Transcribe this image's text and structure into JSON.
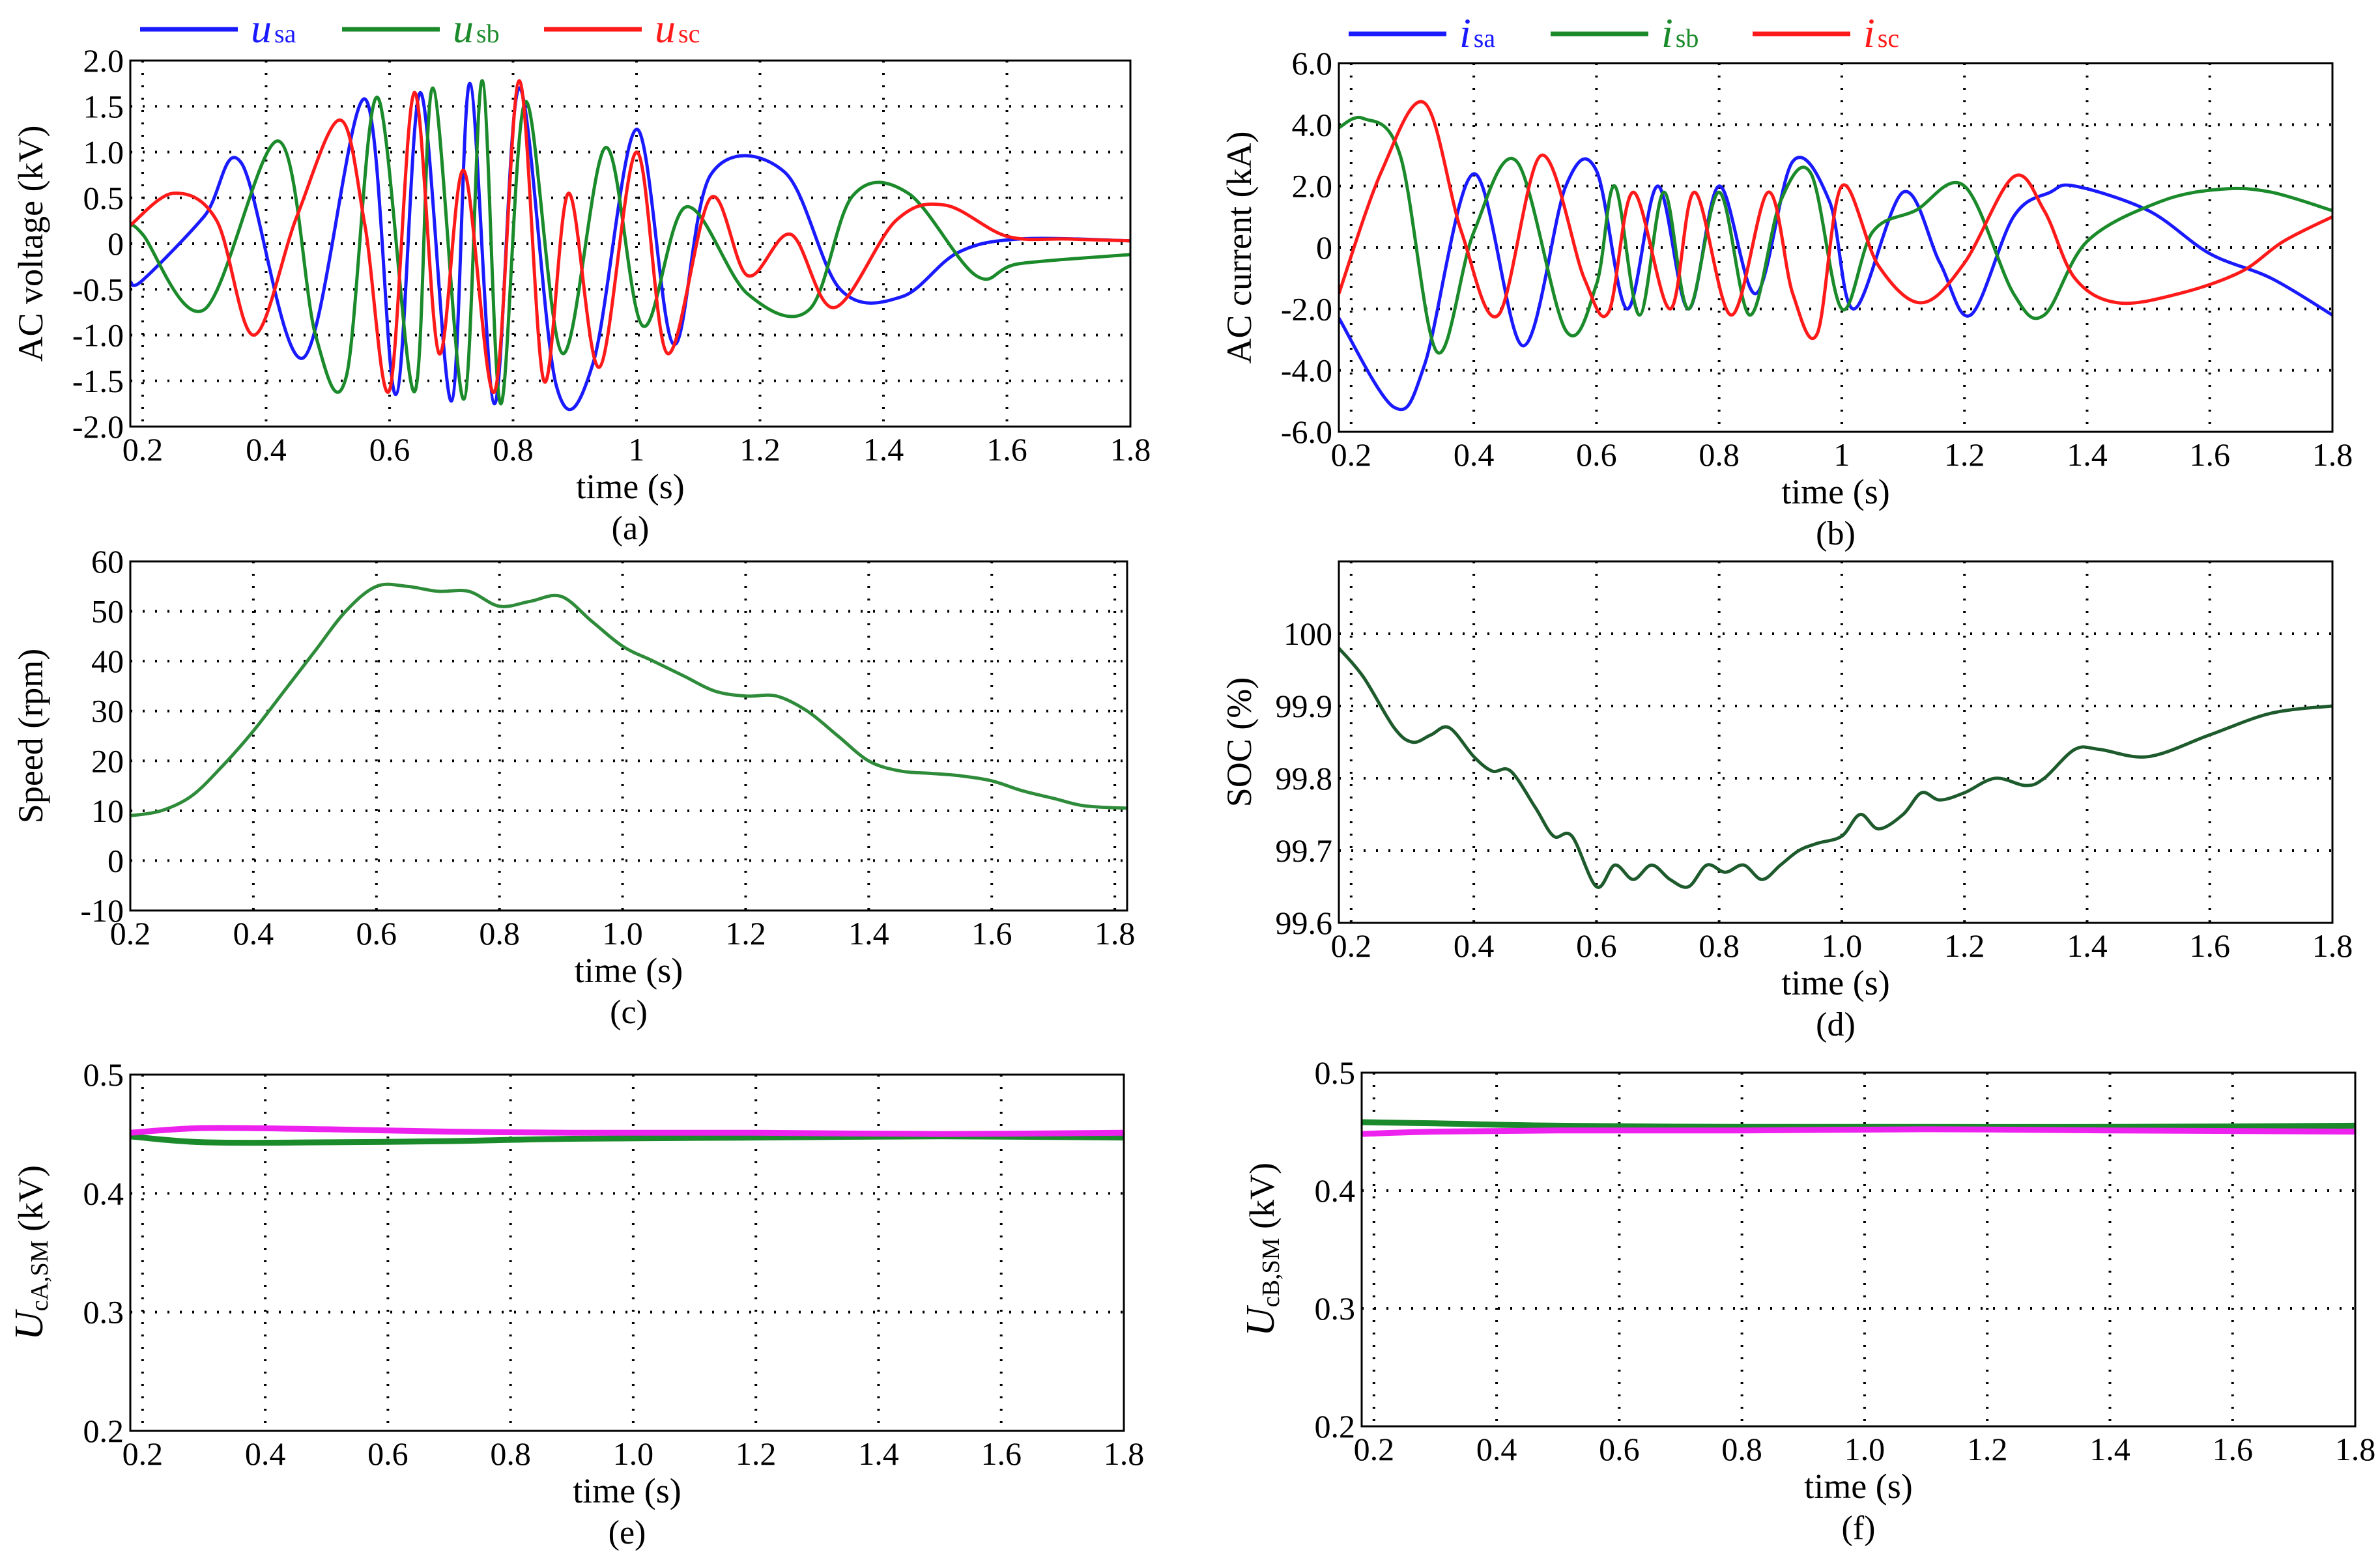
{
  "chart_data": [
    {
      "id": "a",
      "type": "line",
      "caption": "(a)",
      "xlabel": "time (s)",
      "ylabel": "AC voltage (kV)",
      "xlim": [
        0.18,
        1.8
      ],
      "ylim": [
        -2.0,
        2.0
      ],
      "xticks": [
        0.2,
        0.4,
        0.6,
        0.8,
        1,
        1.2,
        1.4,
        1.6,
        1.8
      ],
      "xtick_labels": [
        "0.2",
        "0.4",
        "0.6",
        "0.8",
        "1",
        "1.2",
        "1.4",
        "1.6",
        "1.8"
      ],
      "yticks": [
        2.0,
        1.5,
        1.0,
        0.5,
        0,
        -0.5,
        -1.0,
        -1.5,
        -2.0
      ],
      "ytick_labels": [
        "2.0",
        "1.5",
        "1.0",
        "0.5",
        "0",
        "-0.5",
        "-1.0",
        "-1.5",
        "-2.0"
      ],
      "legend": [
        {
          "name": "u",
          "sub": "sa",
          "color": "#1a1aff"
        },
        {
          "name": "u",
          "sub": "sb",
          "color": "#1a8a2a"
        },
        {
          "name": "u",
          "sub": "sc",
          "color": "#ff1a1a"
        }
      ],
      "series": [
        {
          "name": "usa",
          "color": "#1a1aff",
          "x": [
            0.18,
            0.2,
            0.3,
            0.36,
            0.46,
            0.56,
            0.61,
            0.65,
            0.7,
            0.73,
            0.77,
            0.81,
            0.87,
            0.93,
            1.0,
            1.06,
            1.12,
            1.24,
            1.33,
            1.43,
            1.52,
            1.62,
            1.8
          ],
          "y": [
            -0.42,
            -0.4,
            0.3,
            0.88,
            -1.25,
            1.58,
            -1.65,
            1.65,
            -1.72,
            1.75,
            -1.75,
            1.7,
            -1.55,
            -1.3,
            1.25,
            -1.1,
            0.75,
            0.78,
            -0.5,
            -0.58,
            -0.1,
            0.05,
            0.03
          ]
        },
        {
          "name": "usb",
          "color": "#1a8a2a",
          "x": [
            0.18,
            0.2,
            0.3,
            0.42,
            0.48,
            0.53,
            0.58,
            0.64,
            0.67,
            0.72,
            0.75,
            0.78,
            0.82,
            0.88,
            0.95,
            1.01,
            1.08,
            1.18,
            1.28,
            1.35,
            1.44,
            1.55,
            1.62,
            1.8
          ],
          "y": [
            0.2,
            0.1,
            -0.72,
            1.12,
            -1.0,
            -1.45,
            1.6,
            -1.62,
            1.7,
            -1.7,
            1.78,
            -1.75,
            1.55,
            -1.2,
            1.05,
            -0.9,
            0.4,
            -0.55,
            -0.72,
            0.52,
            0.55,
            -0.35,
            -0.22,
            -0.12
          ]
        },
        {
          "name": "usc",
          "color": "#ff1a1a",
          "x": [
            0.18,
            0.25,
            0.32,
            0.38,
            0.45,
            0.52,
            0.56,
            0.6,
            0.64,
            0.68,
            0.72,
            0.77,
            0.81,
            0.85,
            0.89,
            0.94,
            1.0,
            1.05,
            1.12,
            1.18,
            1.25,
            1.32,
            1.42,
            1.5,
            1.6,
            1.7,
            1.8
          ],
          "y": [
            0.2,
            0.55,
            0.25,
            -1.0,
            0.3,
            1.35,
            0.2,
            -1.6,
            1.65,
            -1.2,
            0.8,
            -1.62,
            1.78,
            -1.5,
            0.55,
            -1.35,
            1.0,
            -1.2,
            0.5,
            -0.35,
            0.1,
            -0.7,
            0.25,
            0.42,
            0.08,
            0.05,
            0.03
          ]
        }
      ]
    },
    {
      "id": "b",
      "type": "line",
      "caption": "(b)",
      "xlabel": "time (s)",
      "ylabel": "AC current (kA)",
      "xlim": [
        0.18,
        1.8
      ],
      "ylim": [
        -6.0,
        6.0
      ],
      "xticks": [
        0.2,
        0.4,
        0.6,
        0.8,
        1,
        1.2,
        1.4,
        1.6,
        1.8
      ],
      "xtick_labels": [
        "0.2",
        "0.4",
        "0.6",
        "0.8",
        "1",
        "1.2",
        "1.4",
        "1.6",
        "1.8"
      ],
      "yticks": [
        6.0,
        4.0,
        2.0,
        0,
        -2.0,
        -4.0,
        -6.0
      ],
      "ytick_labels": [
        "6.0",
        "4.0",
        "2.0",
        "0",
        "-2.0",
        "-4.0",
        "-6.0"
      ],
      "legend": [
        {
          "name": "i",
          "sub": "sa",
          "color": "#1a1aff"
        },
        {
          "name": "i",
          "sub": "sb",
          "color": "#1a8a2a"
        },
        {
          "name": "i",
          "sub": "sc",
          "color": "#ff1a1a"
        }
      ],
      "series": [
        {
          "name": "isa",
          "color": "#1a1aff",
          "x": [
            0.18,
            0.27,
            0.32,
            0.4,
            0.48,
            0.55,
            0.6,
            0.65,
            0.7,
            0.75,
            0.8,
            0.86,
            0.92,
            0.98,
            1.02,
            1.1,
            1.16,
            1.21,
            1.28,
            1.34,
            1.38,
            1.5,
            1.6,
            1.7,
            1.8
          ],
          "y": [
            -2.3,
            -5.2,
            -3.8,
            2.4,
            -3.2,
            2.0,
            2.5,
            -2.0,
            2.0,
            -2.0,
            2.0,
            -1.5,
            2.8,
            1.5,
            -2.0,
            1.8,
            -0.5,
            -2.2,
            1.0,
            1.8,
            2.0,
            1.2,
            -0.2,
            -1.0,
            -2.2
          ]
        },
        {
          "name": "isb",
          "color": "#1a8a2a",
          "x": [
            0.18,
            0.22,
            0.28,
            0.34,
            0.4,
            0.47,
            0.55,
            0.6,
            0.63,
            0.67,
            0.71,
            0.75,
            0.8,
            0.85,
            0.9,
            0.95,
            1.0,
            1.05,
            1.12,
            1.2,
            1.28,
            1.33,
            1.4,
            1.52,
            1.62,
            1.7,
            1.8
          ],
          "y": [
            3.9,
            4.2,
            3.0,
            -3.4,
            0.5,
            2.8,
            -2.7,
            -1.2,
            2.0,
            -2.2,
            1.8,
            -2.0,
            1.8,
            -2.2,
            1.5,
            2.4,
            -2.0,
            0.5,
            1.2,
            2.0,
            -1.5,
            -2.2,
            0.2,
            1.5,
            1.9,
            1.8,
            1.2
          ]
        },
        {
          "name": "isc",
          "color": "#ff1a1a",
          "x": [
            0.18,
            0.25,
            0.32,
            0.38,
            0.44,
            0.51,
            0.58,
            0.62,
            0.66,
            0.72,
            0.76,
            0.82,
            0.88,
            0.92,
            0.96,
            1.0,
            1.06,
            1.13,
            1.2,
            1.28,
            1.33,
            1.38,
            1.45,
            1.55,
            1.65,
            1.72,
            1.8
          ],
          "y": [
            -1.5,
            2.5,
            4.7,
            0.5,
            -2.2,
            3.0,
            -1.0,
            -2.1,
            1.8,
            -2.0,
            1.8,
            -2.2,
            1.8,
            -1.5,
            -2.8,
            2.0,
            -0.6,
            -1.8,
            -0.5,
            2.3,
            1.2,
            -1.0,
            -1.8,
            -1.5,
            -0.8,
            0.2,
            1.0
          ]
        }
      ]
    },
    {
      "id": "c",
      "type": "line",
      "caption": "(c)",
      "xlabel": "time (s)",
      "ylabel": "Speed (rpm)",
      "xlim": [
        0.2,
        1.82
      ],
      "ylim": [
        -10,
        60
      ],
      "xticks": [
        0.2,
        0.4,
        0.6,
        0.8,
        1.0,
        1.2,
        1.4,
        1.6,
        1.8
      ],
      "xtick_labels": [
        "0.2",
        "0.4",
        "0.6",
        "0.8",
        "1.0",
        "1.2",
        "1.4",
        "1.6",
        "1.8"
      ],
      "yticks": [
        60,
        50,
        40,
        30,
        20,
        10,
        0,
        -10
      ],
      "ytick_labels": [
        "60",
        "50",
        "40",
        "30",
        "20",
        "10",
        "0",
        "-10"
      ],
      "series": [
        {
          "name": "speed",
          "color": "#2e8b3a",
          "x": [
            0.2,
            0.25,
            0.3,
            0.35,
            0.4,
            0.45,
            0.5,
            0.55,
            0.6,
            0.65,
            0.7,
            0.75,
            0.8,
            0.85,
            0.9,
            0.95,
            1.0,
            1.05,
            1.1,
            1.15,
            1.2,
            1.25,
            1.3,
            1.35,
            1.4,
            1.45,
            1.5,
            1.55,
            1.6,
            1.65,
            1.7,
            1.75,
            1.82
          ],
          "y": [
            9,
            10,
            13,
            19,
            26,
            34,
            42,
            50,
            55,
            55,
            54,
            54,
            51,
            52,
            53,
            48,
            43,
            40,
            37,
            34,
            33,
            33,
            30,
            25,
            20,
            18,
            17.5,
            17,
            16,
            14,
            12.5,
            11,
            10.5
          ]
        }
      ]
    },
    {
      "id": "d",
      "type": "line",
      "caption": "(d)",
      "xlabel": "time (s)",
      "ylabel": "SOC (%)",
      "xlim": [
        0.18,
        1.8
      ],
      "ylim": [
        99.6,
        100.1
      ],
      "xticks": [
        0.2,
        0.4,
        0.6,
        0.8,
        1.0,
        1.2,
        1.4,
        1.6,
        1.8
      ],
      "xtick_labels": [
        "0.2",
        "0.4",
        "0.6",
        "0.8",
        "1.0",
        "1.2",
        "1.4",
        "1.6",
        "1.8"
      ],
      "yticks": [
        100,
        99.9,
        99.8,
        99.7,
        99.6
      ],
      "ytick_labels": [
        "100",
        "99.9",
        "99.8",
        "99.7",
        "99.6"
      ],
      "series": [
        {
          "name": "soc",
          "color": "#1d5a2c",
          "x": [
            0.18,
            0.22,
            0.27,
            0.3,
            0.33,
            0.36,
            0.4,
            0.43,
            0.46,
            0.5,
            0.53,
            0.56,
            0.6,
            0.63,
            0.66,
            0.69,
            0.72,
            0.75,
            0.78,
            0.81,
            0.84,
            0.87,
            0.9,
            0.93,
            0.96,
            1.0,
            1.03,
            1.06,
            1.1,
            1.13,
            1.16,
            1.2,
            1.25,
            1.3,
            1.33,
            1.38,
            1.42,
            1.5,
            1.6,
            1.7,
            1.8
          ],
          "y": [
            99.98,
            99.94,
            99.87,
            99.85,
            99.86,
            99.87,
            99.83,
            99.81,
            99.81,
            99.76,
            99.72,
            99.72,
            99.65,
            99.68,
            99.66,
            99.68,
            99.66,
            99.65,
            99.68,
            99.67,
            99.68,
            99.66,
            99.68,
            99.7,
            99.71,
            99.72,
            99.75,
            99.73,
            99.75,
            99.78,
            99.77,
            99.78,
            99.8,
            99.79,
            99.8,
            99.84,
            99.84,
            99.83,
            99.86,
            99.89,
            99.9
          ]
        }
      ]
    },
    {
      "id": "e",
      "type": "line",
      "caption": "(e)",
      "xlabel": "time (s)",
      "ylabel_main": "U",
      "ylabel_sub": "cA,SM",
      "ylabel_unit": " (kV)",
      "xlim": [
        0.18,
        1.8
      ],
      "ylim": [
        0.2,
        0.5
      ],
      "xticks": [
        0.2,
        0.4,
        0.6,
        0.8,
        1.0,
        1.2,
        1.4,
        1.6,
        1.8
      ],
      "xtick_labels": [
        "0.2",
        "0.4",
        "0.6",
        "0.8",
        "1.0",
        "1.2",
        "1.4",
        "1.6",
        "1.8"
      ],
      "yticks": [
        0.5,
        0.4,
        0.3,
        0.2
      ],
      "ytick_labels": [
        "0.5",
        "0.4",
        "0.3",
        "0.2"
      ],
      "series": [
        {
          "name": "green",
          "color": "#1a8a2a",
          "x": [
            0.18,
            0.3,
            0.5,
            0.7,
            0.9,
            1.2,
            1.5,
            1.8
          ],
          "y": [
            0.448,
            0.443,
            0.443,
            0.444,
            0.446,
            0.447,
            0.448,
            0.447
          ]
        },
        {
          "name": "magenta",
          "color": "#ee22ee",
          "x": [
            0.18,
            0.3,
            0.5,
            0.7,
            0.9,
            1.2,
            1.5,
            1.8
          ],
          "y": [
            0.451,
            0.455,
            0.454,
            0.452,
            0.451,
            0.451,
            0.45,
            0.451
          ]
        }
      ]
    },
    {
      "id": "f",
      "type": "line",
      "caption": "(f)",
      "xlabel": "time (s)",
      "ylabel_main": "U",
      "ylabel_sub": "cB,SM",
      "ylabel_unit": " (kV)",
      "xlim": [
        0.18,
        1.8
      ],
      "ylim": [
        0.2,
        0.5
      ],
      "xticks": [
        0.2,
        0.4,
        0.6,
        0.8,
        1.0,
        1.2,
        1.4,
        1.6,
        1.8
      ],
      "xtick_labels": [
        "0.2",
        "0.4",
        "0.6",
        "0.8",
        "1.0",
        "1.2",
        "1.4",
        "1.6",
        "1.8"
      ],
      "yticks": [
        0.5,
        0.4,
        0.3,
        0.2
      ],
      "ytick_labels": [
        "0.5",
        "0.4",
        "0.3",
        "0.2"
      ],
      "series": [
        {
          "name": "green",
          "color": "#1a8a2a",
          "x": [
            0.18,
            0.3,
            0.5,
            0.8,
            1.1,
            1.4,
            1.8
          ],
          "y": [
            0.458,
            0.457,
            0.455,
            0.454,
            0.454,
            0.454,
            0.455
          ]
        },
        {
          "name": "magenta",
          "color": "#ee22ee",
          "x": [
            0.18,
            0.3,
            0.5,
            0.8,
            1.1,
            1.4,
            1.8
          ],
          "y": [
            0.448,
            0.45,
            0.451,
            0.451,
            0.452,
            0.451,
            0.45
          ]
        }
      ]
    }
  ]
}
